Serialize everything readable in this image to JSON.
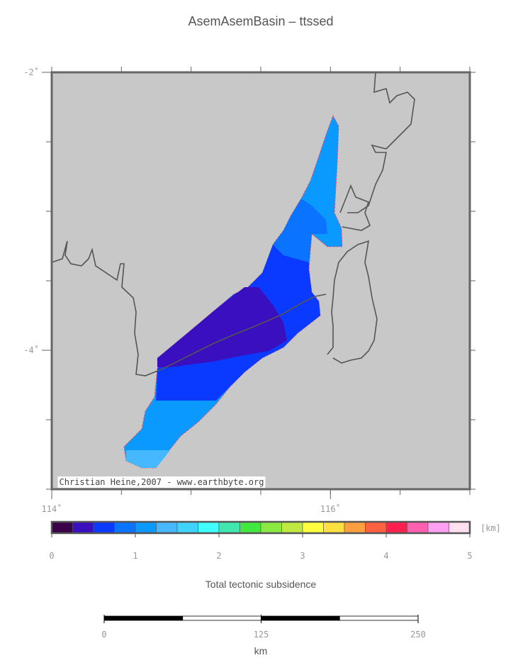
{
  "title": "AsemAsemBasin – ttssed",
  "map": {
    "lat_range": [
      -5,
      -2
    ],
    "lon_range": [
      114,
      117
    ],
    "lat_ticks": [
      {
        "value": -2,
        "label": "-2˚"
      },
      {
        "value": -4,
        "label": "-4˚"
      }
    ],
    "lon_ticks": [
      {
        "value": 114,
        "label": "114˚"
      },
      {
        "value": 116,
        "label": "116˚"
      }
    ],
    "credit": "Christian Heine,2007 - www.earthbyte.org"
  },
  "colorbar": {
    "range": [
      0,
      5
    ],
    "ticks": [
      0,
      1,
      2,
      3,
      4,
      5
    ],
    "unit": "[km]",
    "label": "Total tectonic subsidence",
    "colors": [
      "#3c0048",
      "#3a0fbf",
      "#0a3aff",
      "#0a73ff",
      "#0a9aff",
      "#45b8ff",
      "#3fd4ff",
      "#40ffff",
      "#40e8b0",
      "#40e840",
      "#8be840",
      "#bfe840",
      "#ffff40",
      "#ffe040",
      "#ff9f40",
      "#ff6040",
      "#ff2050",
      "#ff5fb0",
      "#ff9ff0",
      "#ffe0f0"
    ]
  },
  "scalebar": {
    "ticks": [
      0,
      125,
      250
    ],
    "unit": "km"
  }
}
